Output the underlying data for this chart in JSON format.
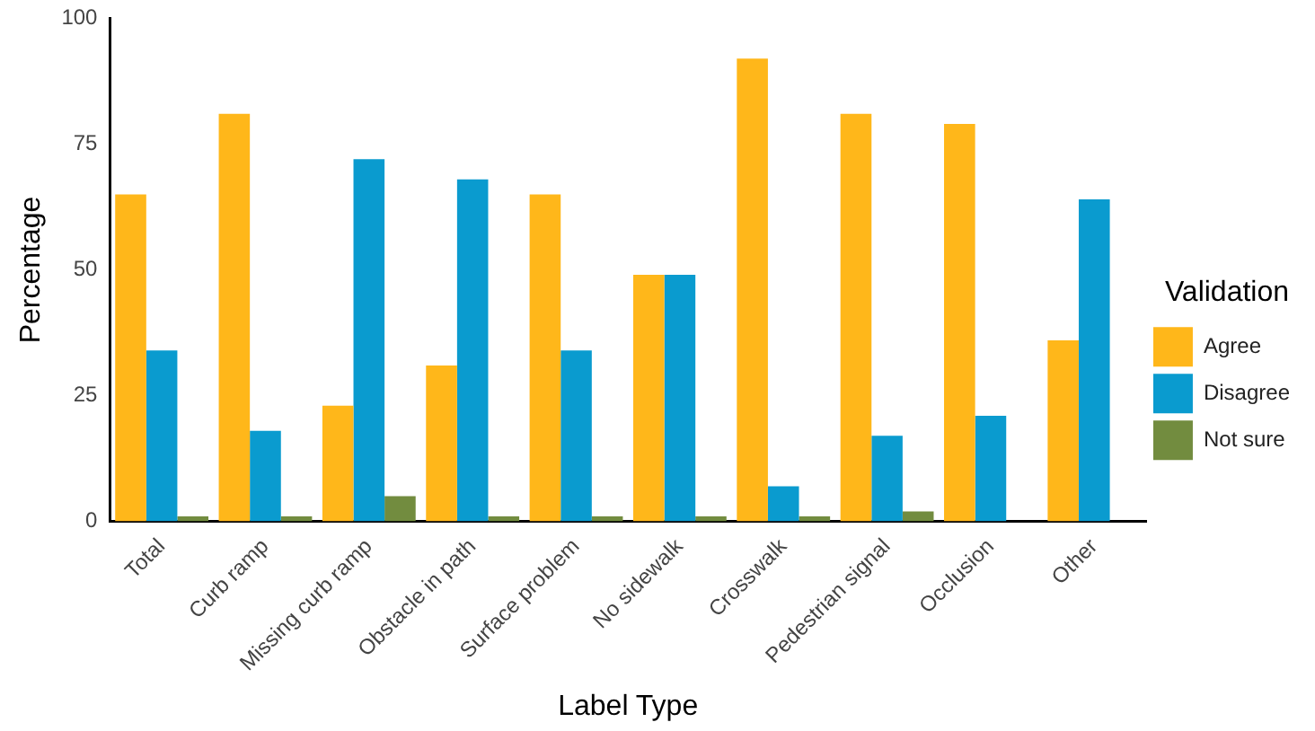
{
  "chart_data": {
    "type": "bar",
    "xlabel": "Label Type",
    "ylabel": "Percentage",
    "legend_title": "Validation",
    "legend": "right",
    "categories": [
      "Total",
      "Curb ramp",
      "Missing curb ramp",
      "Obstacle in path",
      "Surface problem",
      "No sidewalk",
      "Crosswalk",
      "Pedestrian signal",
      "Occlusion",
      "Other"
    ],
    "series": [
      {
        "name": "Agree",
        "color": "#ffb71a",
        "values": [
          65,
          81,
          23,
          31,
          65,
          49,
          92,
          81,
          79,
          36
        ]
      },
      {
        "name": "Disagree",
        "color": "#0a9bcf",
        "values": [
          34,
          18,
          72,
          68,
          34,
          49,
          7,
          17,
          21,
          64
        ]
      },
      {
        "name": "Not sure",
        "color": "#728c3f",
        "values": [
          1,
          1,
          5,
          1,
          1,
          1,
          1,
          2,
          0,
          0
        ]
      }
    ],
    "ylim": [
      0,
      100
    ],
    "yticks": [
      0,
      25,
      50,
      75,
      100
    ],
    "grid": false
  }
}
